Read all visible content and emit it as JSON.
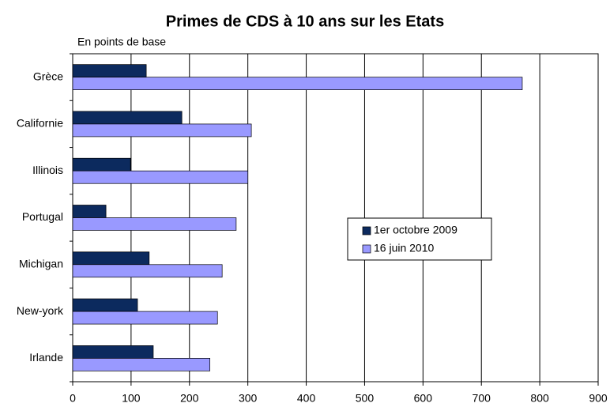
{
  "chart_data": {
    "type": "hbar",
    "title": "Primes de CDS à 10 ans sur les Etats",
    "subtitle": "En points de base",
    "categories": [
      "Grèce",
      "Californie",
      "Illinois",
      "Portugal",
      "Michigan",
      "New-york",
      "Irlande"
    ],
    "series": [
      {
        "name": "1er octobre 2009",
        "color": "#0c2a5e",
        "values": [
          126,
          187,
          99,
          57,
          131,
          111,
          138
        ]
      },
      {
        "name": "16 juin 2010",
        "color": "#9999ff",
        "values": [
          770,
          306,
          300,
          280,
          256,
          248,
          235
        ]
      }
    ],
    "xlim": [
      0,
      900
    ],
    "xticks": [
      0,
      100,
      200,
      300,
      400,
      500,
      600,
      700,
      800,
      900
    ],
    "grid": true
  }
}
